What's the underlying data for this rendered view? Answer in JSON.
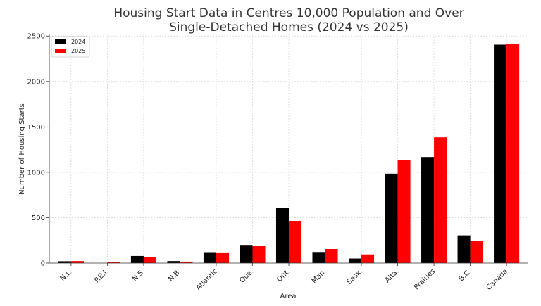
{
  "chart_data": {
    "type": "bar",
    "title": [
      "Housing Start Data in Centres 10,000 Population and Over",
      "Single-Detached Homes (2024 vs 2025)"
    ],
    "xlabel": "Area",
    "ylabel": "Number of Housing Starts",
    "categories": [
      "N.L.",
      "P.E.I.",
      "N.S.",
      "N.B.",
      "Atlantic",
      "Que.",
      "Ont.",
      "Man.",
      "Sask.",
      "Alta.",
      "Prairies",
      "B.C.",
      "Canada"
    ],
    "series": [
      {
        "name": "2024",
        "color": "#000000",
        "values": [
          20,
          0,
          78,
          22,
          120,
          200,
          605,
          122,
          50,
          985,
          1168,
          305,
          2405
        ]
      },
      {
        "name": "2025",
        "color": "#ff0000",
        "values": [
          22,
          15,
          66,
          16,
          117,
          188,
          465,
          155,
          95,
          1133,
          1385,
          247,
          2410
        ]
      }
    ],
    "ylim": [
      0,
      2525
    ],
    "yticks": [
      0,
      500,
      1000,
      1500,
      2000,
      2500
    ],
    "grid": true,
    "legend_position": "top-left"
  }
}
